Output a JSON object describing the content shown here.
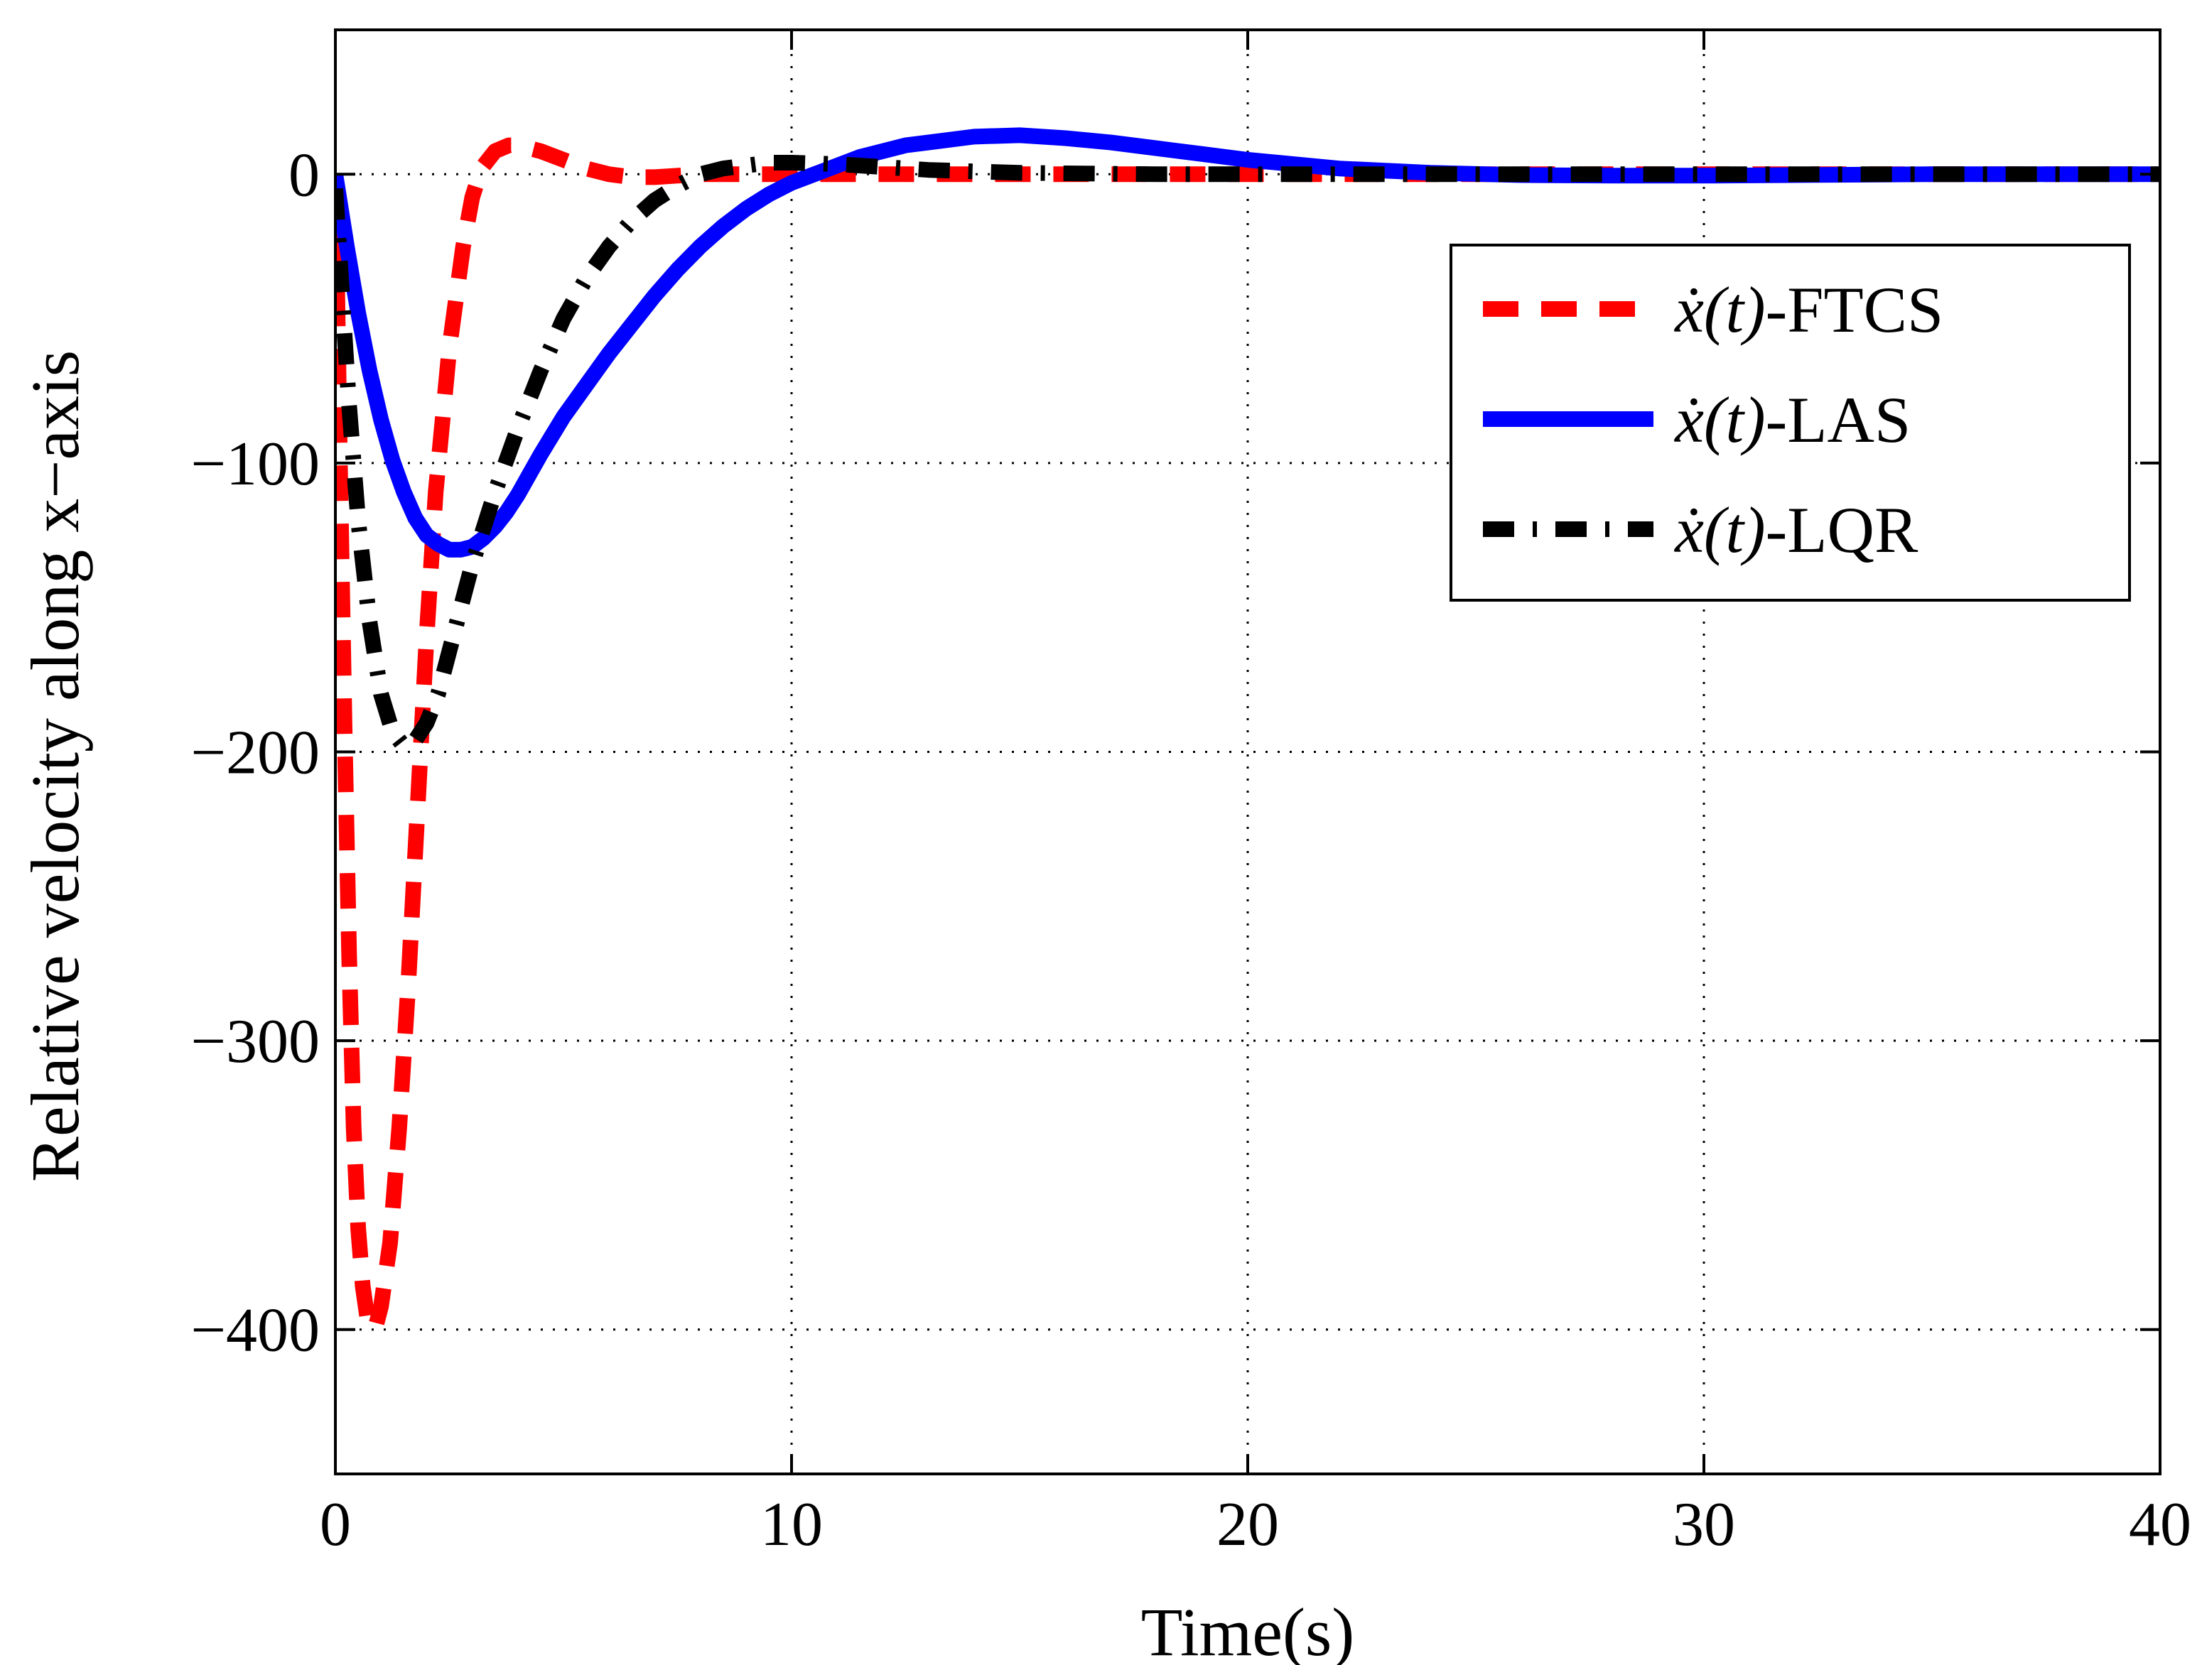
{
  "chart_data": {
    "type": "line",
    "title": "",
    "xlabel": "Time(s)",
    "ylabel": "Relative velocity along x−axis",
    "xlim": [
      0,
      40
    ],
    "ylim": [
      -450,
      50
    ],
    "xticks": [
      0,
      10,
      20,
      30,
      40
    ],
    "xtick_labels": [
      "0",
      "10",
      "20",
      "30",
      "40"
    ],
    "yticks": [
      0,
      -100,
      -200,
      -300,
      -400
    ],
    "ytick_labels": [
      "0",
      "−100",
      "−200",
      "−300",
      "−400"
    ],
    "grid": true,
    "legend_position": "top-right",
    "series": [
      {
        "name": "FTCS",
        "legend_var": "ẋ(t)",
        "legend_suffix": "-FTCS",
        "color": "#ff0000",
        "style": "dashed",
        "x": [
          0,
          0.1,
          0.2,
          0.3,
          0.4,
          0.5,
          0.6,
          0.7,
          0.8,
          0.9,
          1.0,
          1.2,
          1.4,
          1.6,
          1.8,
          2.0,
          2.2,
          2.5,
          2.8,
          3.0,
          3.2,
          3.5,
          3.8,
          4.0,
          4.5,
          5.0,
          5.5,
          6.0,
          6.5,
          7.0,
          7.5,
          8.0,
          9,
          10,
          12,
          15,
          20,
          25,
          30,
          35,
          40
        ],
        "y": [
          0,
          -100,
          -190,
          -270,
          -330,
          -365,
          -385,
          -396,
          -400,
          -398,
          -392,
          -370,
          -330,
          -280,
          -220,
          -160,
          -110,
          -60,
          -25,
          -8,
          2,
          8,
          10,
          10,
          8,
          5,
          2,
          0,
          -1,
          -1,
          -0.5,
          0,
          0,
          0,
          0,
          0,
          0,
          0,
          0,
          0,
          0
        ]
      },
      {
        "name": "LAS",
        "legend_var": "ẋ(t)",
        "legend_suffix": "-LAS",
        "color": "#0000ff",
        "style": "solid",
        "x": [
          0,
          0.25,
          0.5,
          0.75,
          1.0,
          1.25,
          1.5,
          1.75,
          2.0,
          2.25,
          2.5,
          2.75,
          3.0,
          3.25,
          3.5,
          3.75,
          4.0,
          4.25,
          4.5,
          5,
          5.5,
          6,
          6.5,
          7,
          7.5,
          8,
          8.5,
          9,
          9.5,
          10,
          10.5,
          11,
          11.5,
          12,
          12.5,
          13,
          14,
          15,
          16,
          17,
          18,
          19,
          20,
          21,
          22,
          24,
          26,
          28,
          30,
          32,
          35,
          40
        ],
        "y": [
          0,
          -25,
          -48,
          -68,
          -85,
          -99,
          -110,
          -119,
          -125,
          -128,
          -130,
          -130,
          -129,
          -126,
          -122,
          -117,
          -111,
          -104,
          -97,
          -84,
          -73,
          -62,
          -52,
          -42,
          -33,
          -25,
          -18,
          -12,
          -7,
          -3,
          0,
          3,
          6,
          8,
          10,
          11,
          13,
          13.5,
          12.5,
          11,
          9,
          7,
          5,
          3.5,
          2,
          0.5,
          -0.3,
          -0.5,
          -0.5,
          -0.3,
          0,
          0
        ]
      },
      {
        "name": "LQR",
        "legend_var": "ẋ(t)",
        "legend_suffix": "-LQR",
        "color": "#000000",
        "style": "dashdot",
        "x": [
          0,
          0.1,
          0.2,
          0.3,
          0.5,
          0.75,
          1.0,
          1.25,
          1.5,
          1.75,
          2.0,
          2.25,
          2.5,
          2.75,
          3.0,
          3.5,
          4.0,
          4.5,
          5.0,
          5.5,
          6.0,
          6.5,
          7.0,
          7.5,
          8.0,
          8.5,
          9.0,
          9.5,
          10,
          11,
          12,
          13,
          15,
          18,
          20,
          25,
          30,
          35,
          40
        ],
        "y": [
          -5,
          -30,
          -55,
          -80,
          -120,
          -155,
          -180,
          -193,
          -198,
          -196,
          -190,
          -180,
          -165,
          -150,
          -135,
          -110,
          -88,
          -68,
          -50,
          -36,
          -25,
          -16,
          -9,
          -4,
          0,
          2,
          3,
          4,
          4,
          3.5,
          2.5,
          1.5,
          0.5,
          0,
          0,
          0,
          0,
          0,
          0
        ]
      }
    ]
  }
}
